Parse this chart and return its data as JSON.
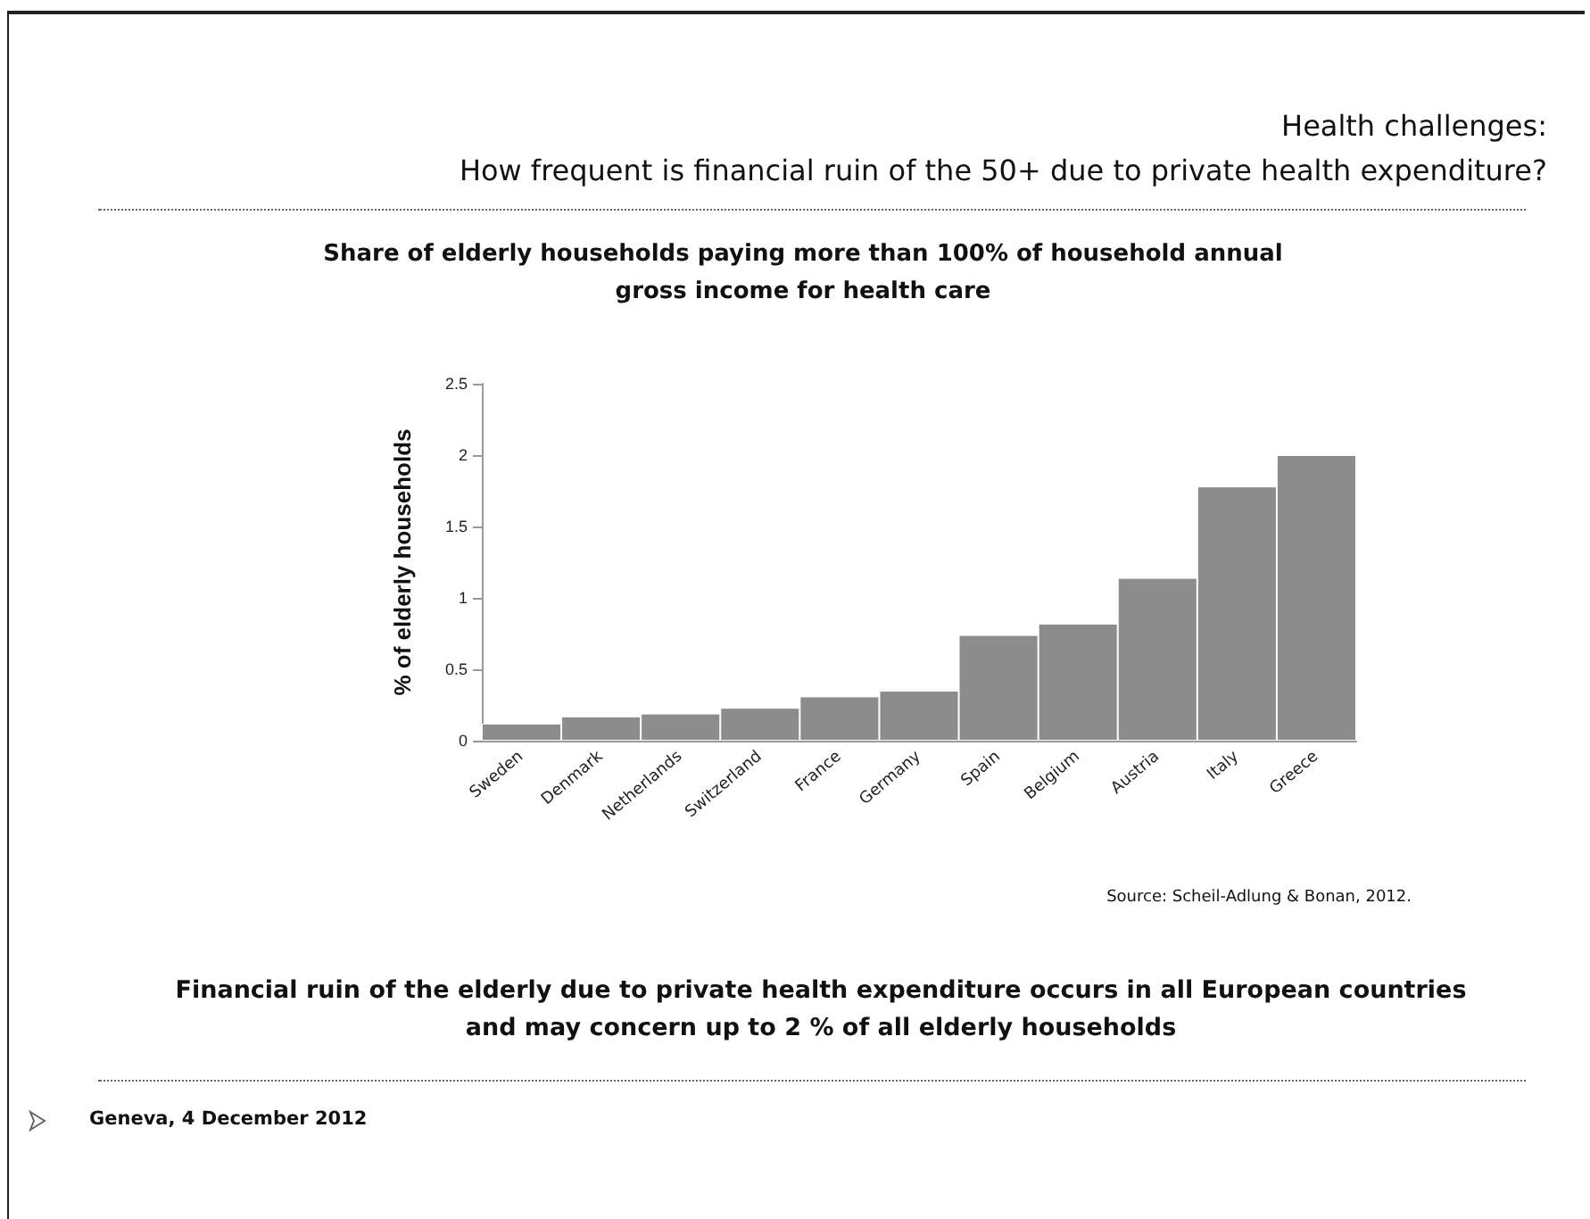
{
  "chart_data": {
    "type": "bar",
    "title": "Health challenges:\nHow frequent is financial ruin of the 50+ due to private health expenditure?",
    "subtitle": "Share of elderly households paying more than 100% of household annual\ngross income for health care",
    "ylabel": "% of elderly households",
    "categories": [
      "Sweden",
      "Denmark",
      "Netherlands",
      "Switzerland",
      "France",
      "Germany",
      "Spain",
      "Belgium",
      "Austria",
      "Italy",
      "Greece"
    ],
    "values": [
      0.12,
      0.17,
      0.19,
      0.23,
      0.31,
      0.35,
      0.74,
      0.82,
      1.14,
      1.78,
      2.0
    ],
    "color": "#8c8c8c",
    "ylim": [
      0,
      2.5
    ],
    "yticks": [
      0,
      0.5,
      1,
      1.5,
      2,
      2.5
    ],
    "grid": false,
    "annotations": [
      "Source: Scheil-Adlung & Bonan, 2012.",
      "Financial ruin of the elderly due to private health expenditure occurs in all European countries\nand may concern up to 2 % of all elderly households",
      "Geneva, 4 December 2012"
    ]
  }
}
